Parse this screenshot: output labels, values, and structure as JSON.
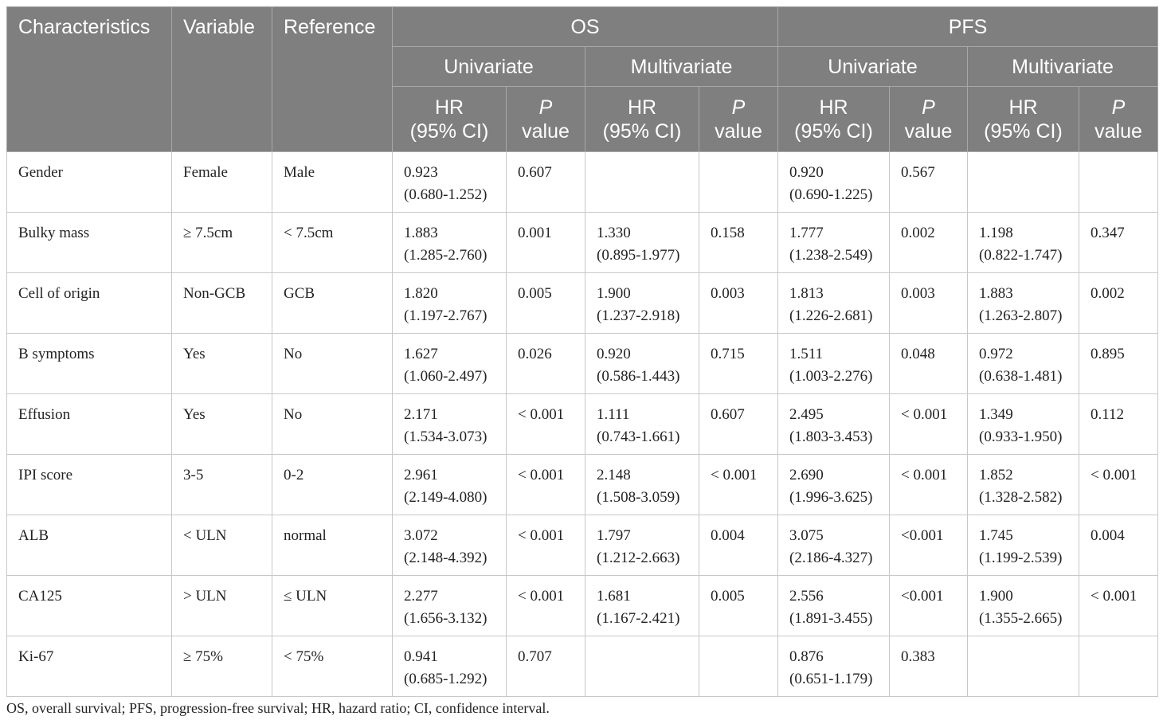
{
  "header": {
    "characteristics": "Characteristics",
    "variable": "Variable",
    "reference": "Reference",
    "os": "OS",
    "pfs": "PFS",
    "univariate": "Univariate",
    "multivariate": "Multivariate",
    "hr_line1": "HR",
    "hr_line2": "(95% CI)",
    "p_line1": "P",
    "p_line2": "value"
  },
  "rows": [
    {
      "char": "Gender",
      "var": "Female",
      "ref": "Male",
      "os_u_hr": "0.923",
      "os_u_ci": "(0.680-1.252)",
      "os_u_p": "0.607",
      "os_m_hr": "",
      "os_m_ci": "",
      "os_m_p": "",
      "pfs_u_hr": "0.920",
      "pfs_u_ci": "(0.690-1.225)",
      "pfs_u_p": "0.567",
      "pfs_m_hr": "",
      "pfs_m_ci": "",
      "pfs_m_p": ""
    },
    {
      "char": "Bulky mass",
      "var": "≥ 7.5cm",
      "ref": "< 7.5cm",
      "os_u_hr": "1.883",
      "os_u_ci": "(1.285-2.760)",
      "os_u_p": "0.001",
      "os_m_hr": "1.330",
      "os_m_ci": "(0.895-1.977)",
      "os_m_p": "0.158",
      "pfs_u_hr": "1.777",
      "pfs_u_ci": "(1.238-2.549)",
      "pfs_u_p": "0.002",
      "pfs_m_hr": "1.198",
      "pfs_m_ci": "(0.822-1.747)",
      "pfs_m_p": "0.347"
    },
    {
      "char": "Cell of origin",
      "var": "Non-GCB",
      "ref": "GCB",
      "os_u_hr": "1.820",
      "os_u_ci": "(1.197-2.767)",
      "os_u_p": "0.005",
      "os_m_hr": "1.900",
      "os_m_ci": "(1.237-2.918)",
      "os_m_p": "0.003",
      "pfs_u_hr": "1.813",
      "pfs_u_ci": "(1.226-2.681)",
      "pfs_u_p": "0.003",
      "pfs_m_hr": "1.883",
      "pfs_m_ci": "(1.263-2.807)",
      "pfs_m_p": "0.002"
    },
    {
      "char": "B symptoms",
      "var": "Yes",
      "ref": "No",
      "os_u_hr": "1.627",
      "os_u_ci": "(1.060-2.497)",
      "os_u_p": "0.026",
      "os_m_hr": "0.920",
      "os_m_ci": "(0.586-1.443)",
      "os_m_p": "0.715",
      "pfs_u_hr": "1.511",
      "pfs_u_ci": "(1.003-2.276)",
      "pfs_u_p": "0.048",
      "pfs_m_hr": "0.972",
      "pfs_m_ci": "(0.638-1.481)",
      "pfs_m_p": "0.895"
    },
    {
      "char": "Effusion",
      "var": "Yes",
      "ref": "No",
      "os_u_hr": "2.171",
      "os_u_ci": "(1.534-3.073)",
      "os_u_p": "< 0.001",
      "os_m_hr": "1.111",
      "os_m_ci": "(0.743-1.661)",
      "os_m_p": "0.607",
      "pfs_u_hr": "2.495",
      "pfs_u_ci": "(1.803-3.453)",
      "pfs_u_p": "< 0.001",
      "pfs_m_hr": "1.349",
      "pfs_m_ci": "(0.933-1.950)",
      "pfs_m_p": "0.112"
    },
    {
      "char": "IPI score",
      "var": "3-5",
      "ref": "0-2",
      "os_u_hr": "2.961",
      "os_u_ci": "(2.149-4.080)",
      "os_u_p": "< 0.001",
      "os_m_hr": "2.148",
      "os_m_ci": "(1.508-3.059)",
      "os_m_p": "< 0.001",
      "pfs_u_hr": "2.690",
      "pfs_u_ci": "(1.996-3.625)",
      "pfs_u_p": "< 0.001",
      "pfs_m_hr": "1.852",
      "pfs_m_ci": "(1.328-2.582)",
      "pfs_m_p": "< 0.001"
    },
    {
      "char": "ALB",
      "var": "< ULN",
      "ref": "normal",
      "os_u_hr": "3.072",
      "os_u_ci": "(2.148-4.392)",
      "os_u_p": "< 0.001",
      "os_m_hr": "1.797",
      "os_m_ci": "(1.212-2.663)",
      "os_m_p": "0.004",
      "pfs_u_hr": "3.075",
      "pfs_u_ci": "(2.186-4.327)",
      "pfs_u_p": "<0.001",
      "pfs_m_hr": "1.745",
      "pfs_m_ci": "(1.199-2.539)",
      "pfs_m_p": "0.004"
    },
    {
      "char": "CA125",
      "var": "> ULN",
      "ref": "≤ ULN",
      "os_u_hr": "2.277",
      "os_u_ci": "(1.656-3.132)",
      "os_u_p": "< 0.001",
      "os_m_hr": "1.681",
      "os_m_ci": "(1.167-2.421)",
      "os_m_p": "0.005",
      "pfs_u_hr": "2.556",
      "pfs_u_ci": "(1.891-3.455)",
      "pfs_u_p": "<0.001",
      "pfs_m_hr": "1.900",
      "pfs_m_ci": "(1.355-2.665)",
      "pfs_m_p": "< 0.001"
    },
    {
      "char": "Ki-67",
      "var": "≥ 75%",
      "ref": "< 75%",
      "os_u_hr": "0.941",
      "os_u_ci": "(0.685-1.292)",
      "os_u_p": "0.707",
      "os_m_hr": "",
      "os_m_ci": "",
      "os_m_p": "",
      "pfs_u_hr": "0.876",
      "pfs_u_ci": "(0.651-1.179)",
      "pfs_u_p": "0.383",
      "pfs_m_hr": "",
      "pfs_m_ci": "",
      "pfs_m_p": ""
    }
  ],
  "footnote": "OS, overall survival; PFS, progression-free survival; HR, hazard ratio; CI, confidence interval."
}
